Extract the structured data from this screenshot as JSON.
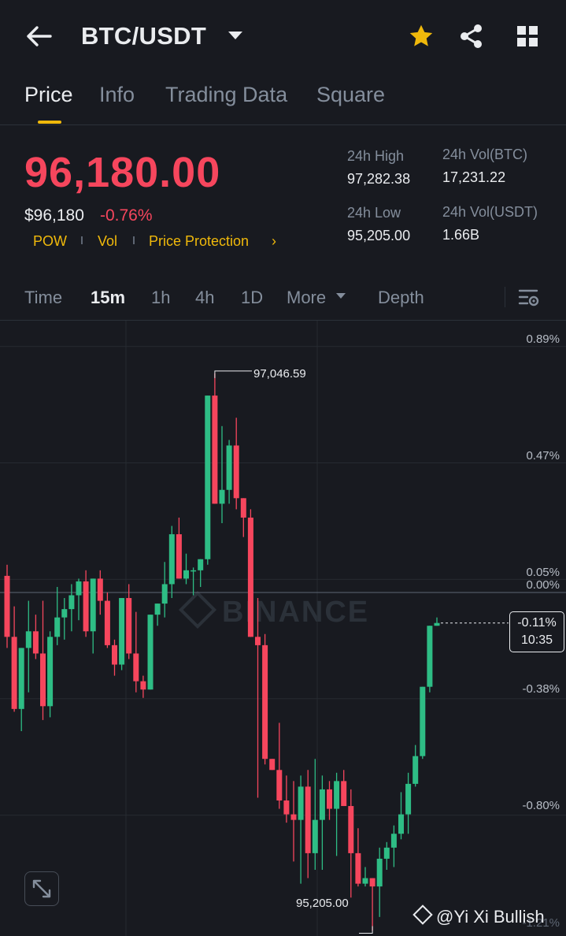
{
  "header": {
    "pair": "BTC/USDT",
    "back_icon": "back-arrow-icon",
    "dropdown_icon": "caret-down-icon",
    "favorite_icon": "star-icon",
    "share_icon": "share-icon",
    "grid_icon": "grid-icon",
    "favorite_color": "#f0b90b"
  },
  "tabs": [
    {
      "label": "Price",
      "active": true
    },
    {
      "label": "Info"
    },
    {
      "label": "Trading Data"
    },
    {
      "label": "Square"
    }
  ],
  "price": {
    "last": "96,180.00",
    "usd": "$96,180",
    "change": "-0.76%",
    "color": "#f6465d"
  },
  "tags": [
    "POW",
    "Vol",
    "Price Protection"
  ],
  "tag_arrow": "›",
  "stats": {
    "high_label": "24h High",
    "high_value": "97,282.38",
    "low_label": "24h Low",
    "low_value": "95,205.00",
    "vol_btc_label": "24h Vol(BTC)",
    "vol_btc_value": "17,231.22",
    "vol_usdt_label": "24h Vol(USDT)",
    "vol_usdt_value": "1.66B"
  },
  "intervals": [
    {
      "label": "Time"
    },
    {
      "label": "15m",
      "active": true
    },
    {
      "label": "1h"
    },
    {
      "label": "4h"
    },
    {
      "label": "1D"
    },
    {
      "label": "More"
    },
    {
      "label": "Depth"
    }
  ],
  "chart_settings_icon": "chart-settings-icon",
  "chart_data": {
    "type": "candlestick",
    "interval": "15m",
    "pct_levels": [
      "0.89%",
      "0.47%",
      "0.05%",
      "0.00%",
      "-0.38%",
      "-0.80%",
      "-1.21%"
    ],
    "high_marker": "97,046.59",
    "low_marker": "95,205.00",
    "current_badge": {
      "pct": "-0.11%",
      "countdown": "10:35"
    },
    "watermark": "BINANCE",
    "up_color": "#2ebd85",
    "down_color": "#f6465d",
    "ohlc_pct": [
      [
        0.06,
        0.1,
        -0.2,
        -0.16
      ],
      [
        -0.16,
        -0.05,
        -0.43,
        -0.42
      ],
      [
        -0.42,
        -0.24,
        -0.5,
        -0.2
      ],
      [
        -0.2,
        -0.03,
        -0.36,
        -0.14
      ],
      [
        -0.14,
        -0.08,
        -0.24,
        -0.22
      ],
      [
        -0.22,
        -0.03,
        -0.46,
        -0.41
      ],
      [
        -0.41,
        -0.14,
        -0.45,
        -0.16
      ],
      [
        -0.16,
        0.02,
        -0.19,
        -0.09
      ],
      [
        -0.09,
        -0.02,
        -0.17,
        -0.06
      ],
      [
        -0.06,
        0.03,
        -0.14,
        -0.01
      ],
      [
        -0.01,
        0.05,
        -0.1,
        0.04
      ],
      [
        0.04,
        0.08,
        -0.16,
        -0.14
      ],
      [
        -0.14,
        0.05,
        -0.22,
        0.05
      ],
      [
        0.05,
        0.08,
        -0.08,
        -0.03
      ],
      [
        -0.03,
        0.0,
        -0.2,
        -0.19
      ],
      [
        -0.19,
        -0.17,
        -0.3,
        -0.26
      ],
      [
        -0.26,
        -0.02,
        -0.28,
        -0.02
      ],
      [
        -0.02,
        0.03,
        -0.24,
        -0.22
      ],
      [
        -0.22,
        -0.07,
        -0.36,
        -0.32
      ],
      [
        -0.32,
        -0.3,
        -0.38,
        -0.35
      ],
      [
        -0.35,
        -0.08,
        -0.35,
        -0.08
      ],
      [
        -0.08,
        -0.04,
        -0.12,
        -0.04
      ],
      [
        -0.04,
        0.11,
        -0.09,
        0.03
      ],
      [
        0.03,
        0.24,
        -0.02,
        0.21
      ],
      [
        0.21,
        0.27,
        0.05,
        0.05
      ],
      [
        0.05,
        0.14,
        0.03,
        0.08
      ],
      [
        0.08,
        0.09,
        -0.01,
        0.08
      ],
      [
        0.08,
        0.1,
        0.02,
        0.12
      ],
      [
        0.12,
        0.48,
        0.1,
        0.71
      ],
      [
        0.71,
        0.79,
        0.76,
        0.32
      ],
      [
        0.32,
        0.6,
        0.25,
        0.37
      ],
      [
        0.37,
        0.55,
        0.32,
        0.53
      ],
      [
        0.53,
        0.63,
        0.3,
        0.34
      ],
      [
        0.34,
        0.34,
        0.2,
        0.27
      ],
      [
        0.27,
        0.3,
        -0.16,
        -0.16
      ],
      [
        -0.16,
        -0.02,
        -0.74,
        -0.19
      ],
      [
        -0.19,
        -0.15,
        -0.62,
        -0.6
      ],
      [
        -0.6,
        -0.62,
        -0.6,
        -0.64
      ],
      [
        -0.64,
        -0.47,
        -0.78,
        -0.75
      ],
      [
        -0.75,
        -0.66,
        -0.83,
        -0.8
      ],
      [
        -0.8,
        -0.68,
        -0.97,
        -0.82
      ],
      [
        -0.82,
        -0.66,
        -1.05,
        -0.7
      ],
      [
        -0.7,
        -0.64,
        -1.03,
        -0.94
      ],
      [
        -0.94,
        -0.6,
        -1.0,
        -0.82
      ],
      [
        -0.82,
        -0.66,
        -1.0,
        -0.71
      ],
      [
        -0.71,
        -0.68,
        -0.82,
        -0.78
      ],
      [
        -0.78,
        -0.65,
        -0.95,
        -0.68
      ],
      [
        -0.68,
        -0.64,
        -0.76,
        -0.77
      ],
      [
        -0.77,
        -0.71,
        -1.1,
        -0.94
      ],
      [
        -0.94,
        -0.85,
        -1.06,
        -1.05
      ],
      [
        -1.05,
        -0.99,
        -1.06,
        -1.03
      ],
      [
        -1.03,
        -1.03,
        -1.22,
        -1.06
      ],
      [
        -1.06,
        -0.92,
        -1.17,
        -0.96
      ],
      [
        -0.96,
        -0.9,
        -1.0,
        -0.92
      ],
      [
        -0.92,
        -0.84,
        -0.99,
        -0.87
      ],
      [
        -0.87,
        -0.72,
        -0.89,
        -0.8
      ],
      [
        -0.8,
        -0.65,
        -0.87,
        -0.69
      ],
      [
        -0.69,
        -0.55,
        -0.7,
        -0.59
      ],
      [
        -0.59,
        -0.42,
        -0.6,
        -0.34
      ],
      [
        -0.34,
        -0.32,
        -0.36,
        -0.12
      ],
      [
        -0.12,
        -0.09,
        -0.12,
        -0.11
      ]
    ]
  },
  "credit": "@Yi Xi Bullish"
}
